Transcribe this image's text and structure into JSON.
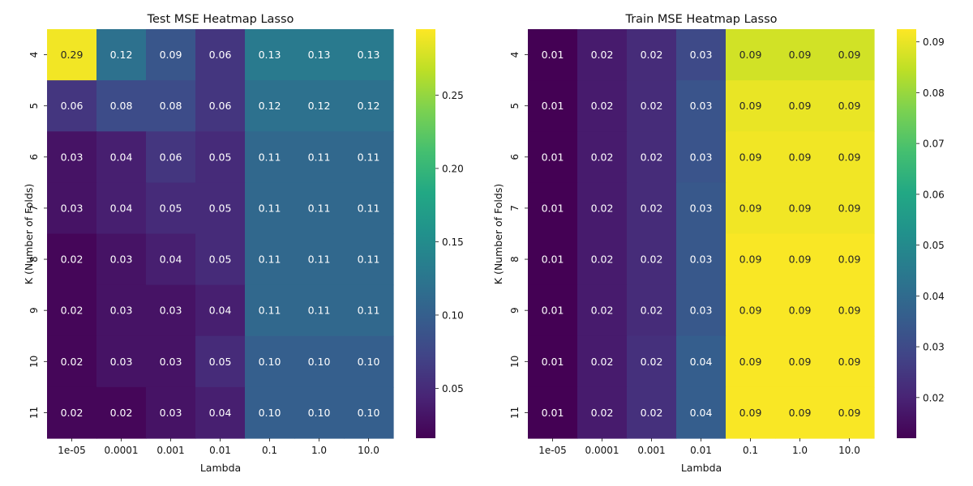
{
  "chart_data": [
    {
      "type": "heatmap",
      "title": "Test MSE Heatmap Lasso",
      "xlabel": "Lambda",
      "ylabel": "K (Number of Folds)",
      "x_categories": [
        "1e-05",
        "0.0001",
        "0.001",
        "0.01",
        "0.1",
        "1.0",
        "10.0"
      ],
      "y_categories": [
        "4",
        "5",
        "6",
        "7",
        "8",
        "9",
        "10",
        "11"
      ],
      "values": [
        [
          0.29,
          0.12,
          0.09,
          0.06,
          0.13,
          0.13,
          0.13
        ],
        [
          0.06,
          0.08,
          0.08,
          0.06,
          0.12,
          0.12,
          0.12
        ],
        [
          0.03,
          0.04,
          0.06,
          0.05,
          0.11,
          0.11,
          0.11
        ],
        [
          0.03,
          0.04,
          0.05,
          0.05,
          0.11,
          0.11,
          0.11
        ],
        [
          0.02,
          0.03,
          0.04,
          0.05,
          0.11,
          0.11,
          0.11
        ],
        [
          0.02,
          0.03,
          0.03,
          0.04,
          0.11,
          0.11,
          0.11
        ],
        [
          0.02,
          0.03,
          0.03,
          0.05,
          0.1,
          0.1,
          0.1
        ],
        [
          0.02,
          0.02,
          0.03,
          0.04,
          0.1,
          0.1,
          0.1
        ]
      ],
      "value_labels": [
        [
          "0.29",
          "0.12",
          "0.09",
          "0.06",
          "0.13",
          "0.13",
          "0.13"
        ],
        [
          "0.06",
          "0.08",
          "0.08",
          "0.06",
          "0.12",
          "0.12",
          "0.12"
        ],
        [
          "0.03",
          "0.04",
          "0.06",
          "0.05",
          "0.11",
          "0.11",
          "0.11"
        ],
        [
          "0.03",
          "0.04",
          "0.05",
          "0.05",
          "0.11",
          "0.11",
          "0.11"
        ],
        [
          "0.02",
          "0.03",
          "0.04",
          "0.05",
          "0.11",
          "0.11",
          "0.11"
        ],
        [
          "0.02",
          "0.03",
          "0.03",
          "0.04",
          "0.11",
          "0.11",
          "0.11"
        ],
        [
          "0.02",
          "0.03",
          "0.03",
          "0.05",
          "0.10",
          "0.10",
          "0.10"
        ],
        [
          "0.02",
          "0.02",
          "0.03",
          "0.04",
          "0.10",
          "0.10",
          "0.10"
        ]
      ],
      "colorbar": {
        "colormap": "viridis",
        "range": [
          0.016,
          0.295
        ],
        "ticks": [
          0.05,
          0.1,
          0.15,
          0.2,
          0.25
        ],
        "tick_labels": [
          "0.05",
          "0.10",
          "0.15",
          "0.20",
          "0.25"
        ]
      }
    },
    {
      "type": "heatmap",
      "title": "Train MSE Heatmap Lasso",
      "xlabel": "Lambda",
      "ylabel": "K (Number of Folds)",
      "x_categories": [
        "1e-05",
        "0.0001",
        "0.001",
        "0.01",
        "0.1",
        "1.0",
        "10.0"
      ],
      "y_categories": [
        "4",
        "5",
        "6",
        "7",
        "8",
        "9",
        "10",
        "11"
      ],
      "values": [
        [
          0.012,
          0.018,
          0.022,
          0.03,
          0.087,
          0.087,
          0.087
        ],
        [
          0.012,
          0.018,
          0.022,
          0.033,
          0.09,
          0.09,
          0.09
        ],
        [
          0.012,
          0.018,
          0.022,
          0.033,
          0.091,
          0.091,
          0.091
        ],
        [
          0.012,
          0.018,
          0.022,
          0.034,
          0.091,
          0.091,
          0.091
        ],
        [
          0.012,
          0.018,
          0.022,
          0.034,
          0.092,
          0.092,
          0.092
        ],
        [
          0.012,
          0.018,
          0.022,
          0.034,
          0.092,
          0.092,
          0.092
        ],
        [
          0.012,
          0.018,
          0.023,
          0.036,
          0.092,
          0.092,
          0.092
        ],
        [
          0.012,
          0.018,
          0.023,
          0.036,
          0.092,
          0.092,
          0.092
        ]
      ],
      "value_labels": [
        [
          "0.01",
          "0.02",
          "0.02",
          "0.03",
          "0.09",
          "0.09",
          "0.09"
        ],
        [
          "0.01",
          "0.02",
          "0.02",
          "0.03",
          "0.09",
          "0.09",
          "0.09"
        ],
        [
          "0.01",
          "0.02",
          "0.02",
          "0.03",
          "0.09",
          "0.09",
          "0.09"
        ],
        [
          "0.01",
          "0.02",
          "0.02",
          "0.03",
          "0.09",
          "0.09",
          "0.09"
        ],
        [
          "0.01",
          "0.02",
          "0.02",
          "0.03",
          "0.09",
          "0.09",
          "0.09"
        ],
        [
          "0.01",
          "0.02",
          "0.02",
          "0.03",
          "0.09",
          "0.09",
          "0.09"
        ],
        [
          "0.01",
          "0.02",
          "0.02",
          "0.04",
          "0.09",
          "0.09",
          "0.09"
        ],
        [
          "0.01",
          "0.02",
          "0.02",
          "0.04",
          "0.09",
          "0.09",
          "0.09"
        ]
      ],
      "colorbar": {
        "colormap": "viridis",
        "range": [
          0.012,
          0.0925
        ],
        "ticks": [
          0.02,
          0.03,
          0.04,
          0.05,
          0.06,
          0.07,
          0.08,
          0.09
        ],
        "tick_labels": [
          "0.02",
          "0.03",
          "0.04",
          "0.05",
          "0.06",
          "0.07",
          "0.08",
          "0.09"
        ]
      }
    }
  ]
}
